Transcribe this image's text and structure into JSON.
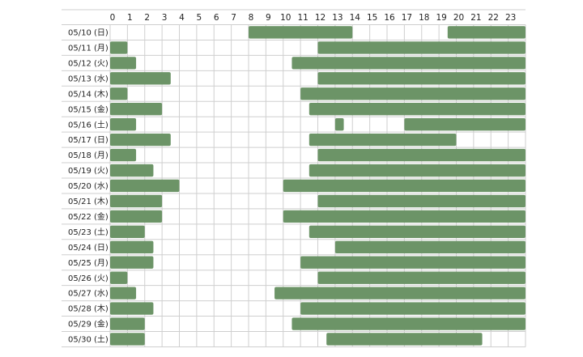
{
  "chart_data": {
    "type": "timeline",
    "x_ticks": [
      0,
      1,
      2,
      3,
      4,
      5,
      6,
      7,
      8,
      9,
      10,
      11,
      12,
      13,
      14,
      15,
      16,
      17,
      18,
      19,
      20,
      21,
      22,
      23
    ],
    "xlim": [
      0,
      24
    ],
    "grid": true,
    "bar_color": "#6c9467",
    "grid_color": "#cfcfcf",
    "rows": [
      {
        "label": "05/10 (日)",
        "segments": [
          [
            8.0,
            14.0
          ],
          [
            19.5,
            24.0
          ]
        ]
      },
      {
        "label": "05/11 (月)",
        "segments": [
          [
            0.0,
            1.0
          ],
          [
            12.0,
            24.0
          ]
        ]
      },
      {
        "label": "05/12 (火)",
        "segments": [
          [
            0.0,
            1.5
          ],
          [
            10.5,
            24.0
          ]
        ]
      },
      {
        "label": "05/13 (水)",
        "segments": [
          [
            0.0,
            3.5
          ],
          [
            12.0,
            24.0
          ]
        ]
      },
      {
        "label": "05/14 (木)",
        "segments": [
          [
            0.0,
            1.0
          ],
          [
            11.0,
            24.0
          ]
        ]
      },
      {
        "label": "05/15 (金)",
        "segments": [
          [
            0.0,
            3.0
          ],
          [
            11.5,
            24.0
          ]
        ]
      },
      {
        "label": "05/16 (土)",
        "segments": [
          [
            0.0,
            1.5
          ],
          [
            13.0,
            13.5
          ],
          [
            17.0,
            24.0
          ]
        ]
      },
      {
        "label": "05/17 (日)",
        "segments": [
          [
            0.0,
            3.5
          ],
          [
            11.5,
            20.0
          ]
        ]
      },
      {
        "label": "05/18 (月)",
        "segments": [
          [
            0.0,
            1.5
          ],
          [
            12.0,
            24.0
          ]
        ]
      },
      {
        "label": "05/19 (火)",
        "segments": [
          [
            0.0,
            2.5
          ],
          [
            11.5,
            24.0
          ]
        ]
      },
      {
        "label": "05/20 (水)",
        "segments": [
          [
            0.0,
            4.0
          ],
          [
            10.0,
            24.0
          ]
        ]
      },
      {
        "label": "05/21 (木)",
        "segments": [
          [
            0.0,
            3.0
          ],
          [
            12.0,
            24.0
          ]
        ]
      },
      {
        "label": "05/22 (金)",
        "segments": [
          [
            0.0,
            3.0
          ],
          [
            10.0,
            24.0
          ]
        ]
      },
      {
        "label": "05/23 (土)",
        "segments": [
          [
            0.0,
            2.0
          ],
          [
            11.5,
            24.0
          ]
        ]
      },
      {
        "label": "05/24 (日)",
        "segments": [
          [
            0.0,
            2.5
          ],
          [
            13.0,
            24.0
          ]
        ]
      },
      {
        "label": "05/25 (月)",
        "segments": [
          [
            0.0,
            2.5
          ],
          [
            11.0,
            24.0
          ]
        ]
      },
      {
        "label": "05/26 (火)",
        "segments": [
          [
            0.0,
            1.0
          ],
          [
            12.0,
            24.0
          ]
        ]
      },
      {
        "label": "05/27 (水)",
        "segments": [
          [
            0.0,
            1.5
          ],
          [
            9.5,
            24.0
          ]
        ]
      },
      {
        "label": "05/28 (木)",
        "segments": [
          [
            0.0,
            2.5
          ],
          [
            11.0,
            24.0
          ]
        ]
      },
      {
        "label": "05/29 (金)",
        "segments": [
          [
            0.0,
            2.0
          ],
          [
            10.5,
            24.0
          ]
        ]
      },
      {
        "label": "05/30 (土)",
        "segments": [
          [
            0.0,
            2.0
          ],
          [
            12.5,
            21.5
          ]
        ]
      }
    ]
  }
}
